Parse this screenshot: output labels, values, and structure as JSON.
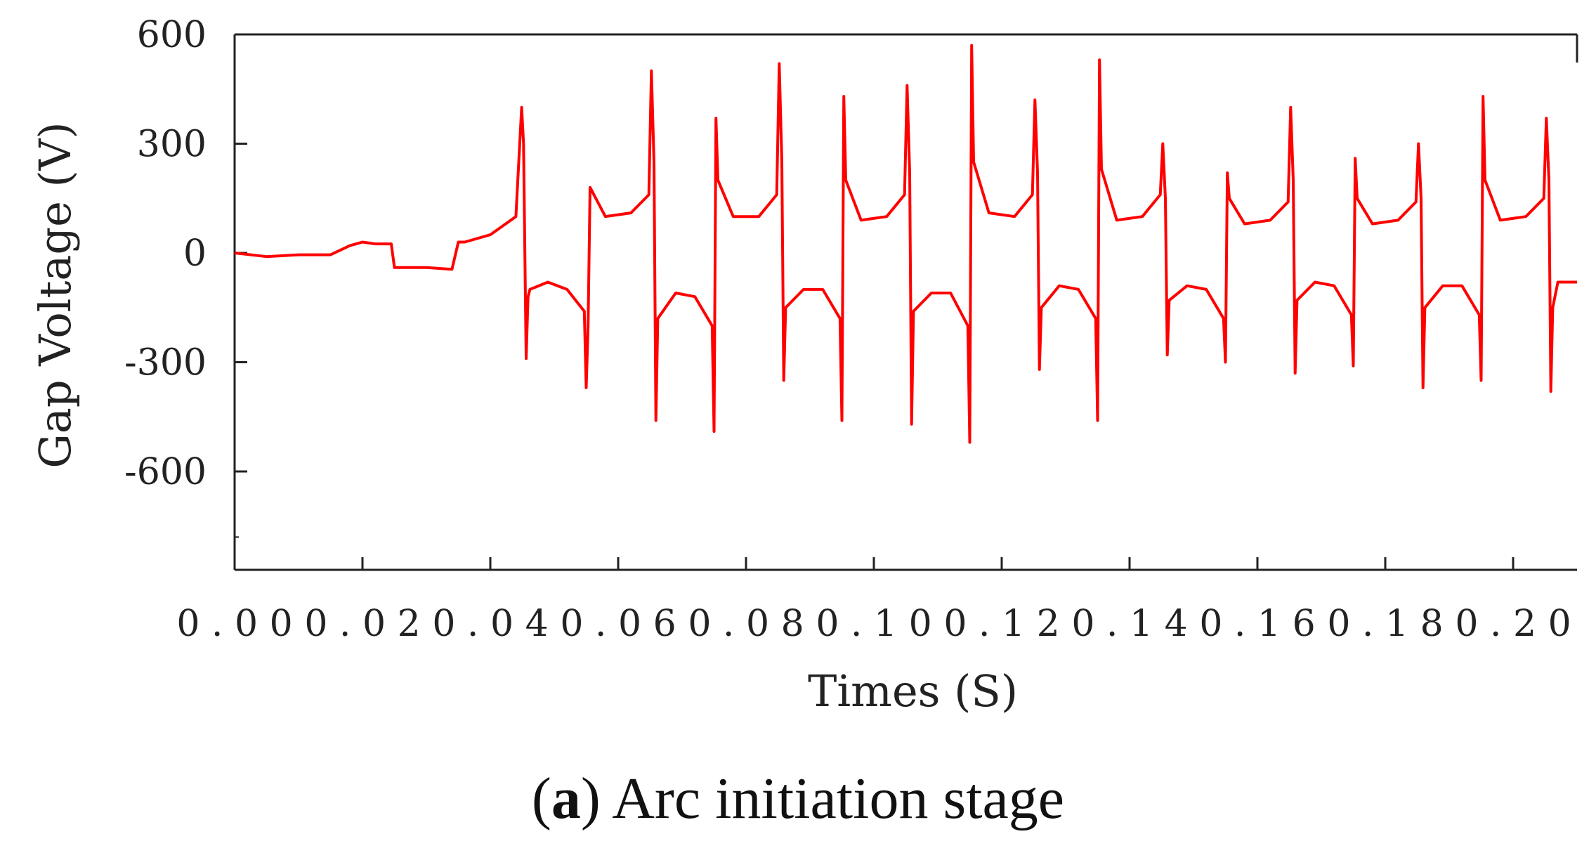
{
  "chart_data": {
    "type": "line",
    "title": "",
    "xlabel": "Times (S)",
    "ylabel": "Gap Voltage (V)",
    "xlim": [
      0,
      0.21
    ],
    "ylim": [
      -870,
      600
    ],
    "x_ticks": [
      0.0,
      0.02,
      0.04,
      0.06,
      0.08,
      0.1,
      0.12,
      0.14,
      0.16,
      0.18,
      0.2
    ],
    "x_tick_labels": [
      "0.00",
      "0.02",
      "0.04",
      "0.06",
      "0.08",
      "0.10",
      "0.12",
      "0.14",
      "0.16",
      "0.18",
      "0.20"
    ],
    "y_ticks": [
      600,
      300,
      0,
      -300,
      -600
    ],
    "y_tick_labels": [
      "600",
      "300",
      "0",
      "-300",
      "-600"
    ],
    "grid": false,
    "series": [
      {
        "name": "Gap Voltage",
        "color": "#ff0000",
        "x": [
          0.0,
          0.005,
          0.01,
          0.015,
          0.018,
          0.02,
          0.022,
          0.0245,
          0.025,
          0.026,
          0.03,
          0.034,
          0.035,
          0.036,
          0.04,
          0.044,
          0.0449,
          0.0452,
          0.0456,
          0.0459,
          0.0462,
          0.049,
          0.052,
          0.0547,
          0.055,
          0.0553,
          0.0556,
          0.058,
          0.062,
          0.0648,
          0.0652,
          0.0656,
          0.0659,
          0.0662,
          0.069,
          0.072,
          0.0747,
          0.075,
          0.0753,
          0.0756,
          0.078,
          0.082,
          0.0848,
          0.0852,
          0.0856,
          0.0859,
          0.0862,
          0.089,
          0.092,
          0.0947,
          0.095,
          0.0953,
          0.0956,
          0.098,
          0.102,
          0.1048,
          0.1052,
          0.1056,
          0.1059,
          0.1062,
          0.109,
          0.112,
          0.1147,
          0.115,
          0.1153,
          0.1156,
          0.118,
          0.122,
          0.1248,
          0.1252,
          0.1256,
          0.1259,
          0.1262,
          0.129,
          0.132,
          0.1347,
          0.135,
          0.1353,
          0.1356,
          0.138,
          0.142,
          0.1448,
          0.1452,
          0.1456,
          0.1459,
          0.1462,
          0.149,
          0.152,
          0.1547,
          0.155,
          0.1553,
          0.1556,
          0.158,
          0.162,
          0.1648,
          0.1652,
          0.1656,
          0.1659,
          0.1662,
          0.169,
          0.172,
          0.1747,
          0.175,
          0.1753,
          0.1756,
          0.178,
          0.182,
          0.1848,
          0.1852,
          0.1856,
          0.1859,
          0.1862,
          0.189,
          0.192,
          0.1947,
          0.195,
          0.1953,
          0.1956,
          0.198,
          0.202,
          0.2048,
          0.2052,
          0.2056,
          0.2059,
          0.2062,
          0.207,
          0.21
        ],
        "y": [
          0,
          -10,
          -5,
          -5,
          20,
          30,
          25,
          25,
          -40,
          -40,
          -40,
          -45,
          30,
          30,
          50,
          100,
          400,
          300,
          -290,
          -120,
          -100,
          -80,
          -100,
          -160,
          -370,
          -200,
          180,
          100,
          110,
          160,
          500,
          250,
          -460,
          -180,
          -110,
          -120,
          -200,
          -490,
          370,
          200,
          100,
          100,
          160,
          520,
          250,
          -350,
          -150,
          -100,
          -100,
          -180,
          -460,
          430,
          200,
          90,
          100,
          160,
          460,
          220,
          -470,
          -160,
          -110,
          -110,
          -200,
          -520,
          570,
          250,
          110,
          100,
          160,
          420,
          220,
          -320,
          -150,
          -90,
          -100,
          -180,
          -460,
          530,
          230,
          90,
          100,
          160,
          300,
          150,
          -280,
          -130,
          -90,
          -100,
          -180,
          -300,
          220,
          150,
          80,
          90,
          140,
          400,
          200,
          -330,
          -130,
          -80,
          -90,
          -170,
          -310,
          260,
          150,
          80,
          90,
          140,
          300,
          150,
          -370,
          -150,
          -90,
          -90,
          -170,
          -350,
          430,
          200,
          90,
          100,
          150,
          370,
          200,
          -380,
          -150,
          -80,
          -80
        ]
      }
    ]
  },
  "caption": {
    "label": "a",
    "text": " Arc initiation stage"
  }
}
